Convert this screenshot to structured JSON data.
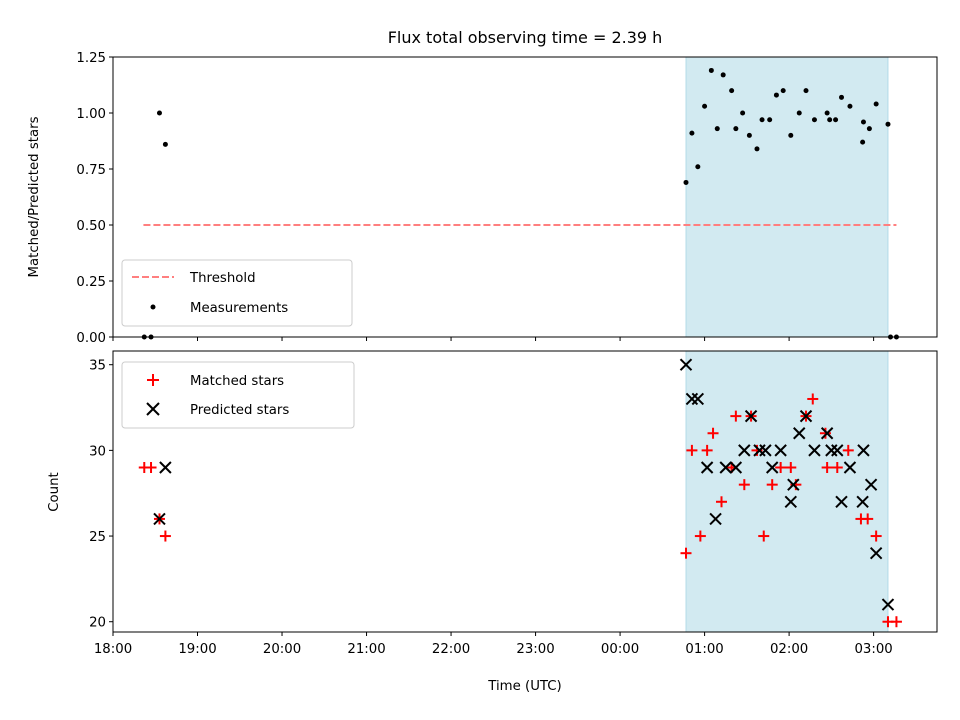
{
  "chart_data": [
    {
      "type": "scatter",
      "title": "Flux total observing time = 2.39 h",
      "xlabel": "",
      "ylabel": "Matched/Predicted stars",
      "xlim": [
        18.0,
        27.75
      ],
      "ylim": [
        0,
        1.25
      ],
      "yticks": [
        "0.00",
        "0.25",
        "0.50",
        "0.75",
        "1.00",
        "1.25"
      ],
      "shaded_span": [
        24.78,
        27.17
      ],
      "shade_color": "#add8e6",
      "series": [
        {
          "name": "Threshold",
          "kind": "dashed-line",
          "color": "#ff7f7f",
          "x": [
            18.36,
            27.27
          ],
          "y": [
            0.5,
            0.5
          ]
        },
        {
          "name": "Measurements",
          "kind": "dot",
          "color": "#000000",
          "x": [
            18.37,
            18.45,
            18.55,
            18.62,
            24.78,
            24.85,
            24.92,
            25.0,
            25.08,
            25.15,
            25.22,
            25.32,
            25.37,
            25.45,
            25.53,
            25.62,
            25.68,
            25.77,
            25.85,
            25.93,
            26.02,
            26.12,
            26.2,
            26.3,
            26.45,
            26.48,
            26.55,
            26.62,
            26.72,
            26.87,
            26.88,
            26.95,
            27.03,
            27.17,
            27.2,
            27.27
          ],
          "y": [
            0.0,
            0.0,
            1.0,
            0.86,
            0.69,
            0.91,
            0.76,
            1.03,
            1.19,
            0.93,
            1.17,
            1.1,
            0.93,
            1.0,
            0.9,
            0.84,
            0.97,
            0.97,
            1.08,
            1.1,
            0.9,
            1.0,
            1.1,
            0.97,
            1.0,
            0.97,
            0.97,
            1.07,
            1.03,
            0.87,
            0.96,
            0.93,
            1.04,
            0.95,
            0.0,
            0.0
          ]
        }
      ]
    },
    {
      "type": "scatter",
      "title": "",
      "xlabel": "Time (UTC)",
      "ylabel": "Count",
      "xlim": [
        18.0,
        27.75
      ],
      "ylim": [
        19.4,
        35.8
      ],
      "yticks": [
        "20",
        "25",
        "30",
        "35"
      ],
      "xticks": [
        "18:00",
        "19:00",
        "20:00",
        "21:00",
        "22:00",
        "23:00",
        "00:00",
        "01:00",
        "02:00",
        "03:00"
      ],
      "shaded_span": [
        24.78,
        27.17
      ],
      "shade_color": "#add8e6",
      "series": [
        {
          "name": "Matched stars",
          "kind": "plus",
          "color": "#ff0000",
          "x": [
            18.37,
            18.45,
            18.55,
            18.62,
            24.78,
            24.85,
            24.95,
            25.03,
            25.1,
            25.2,
            25.32,
            25.37,
            25.47,
            25.55,
            25.62,
            25.7,
            25.8,
            25.9,
            26.02,
            26.08,
            26.2,
            26.28,
            26.43,
            26.45,
            26.57,
            26.7,
            26.85,
            26.93,
            27.03,
            27.17,
            27.27
          ],
          "y": [
            29,
            29,
            26,
            25,
            24,
            30,
            25,
            30,
            31,
            27,
            29,
            32,
            28,
            32,
            30,
            25,
            28,
            29,
            29,
            28,
            32,
            33,
            31,
            29,
            29,
            30,
            26,
            26,
            25,
            20,
            20
          ]
        },
        {
          "name": "Predicted stars",
          "kind": "x",
          "color": "#000000",
          "x": [
            18.55,
            18.62,
            24.78,
            24.85,
            24.92,
            25.03,
            25.13,
            25.25,
            25.37,
            25.47,
            25.55,
            25.65,
            25.72,
            25.8,
            25.9,
            26.02,
            26.05,
            26.12,
            26.2,
            26.3,
            26.45,
            26.5,
            26.57,
            26.62,
            26.72,
            26.87,
            26.88,
            26.97,
            27.03,
            27.17
          ],
          "y": [
            26,
            29,
            35,
            33,
            33,
            29,
            26,
            29,
            29,
            30,
            32,
            30,
            30,
            29,
            30,
            27,
            28,
            31,
            32,
            30,
            31,
            30,
            30,
            27,
            29,
            27,
            30,
            28,
            24,
            21
          ]
        }
      ]
    }
  ]
}
